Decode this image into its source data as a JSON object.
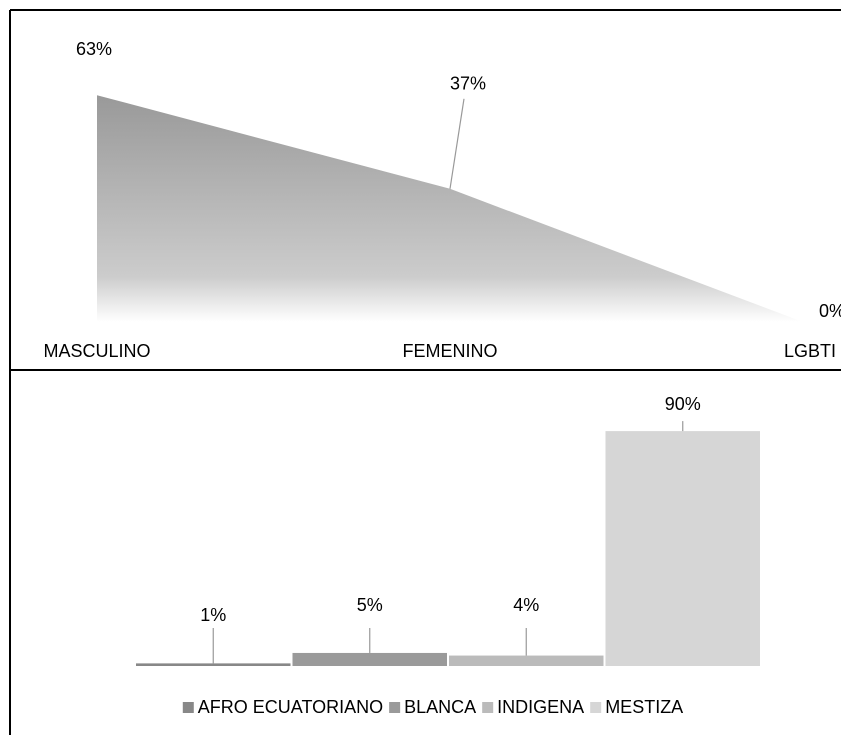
{
  "chart_data": [
    {
      "type": "area",
      "categories": [
        "MASCULINO",
        "FEMENINO",
        "LGBTI"
      ],
      "values": [
        63,
        37,
        0
      ],
      "value_labels": [
        "63%",
        "37%",
        "0%"
      ],
      "color": "#999999",
      "ylim": [
        0,
        70
      ]
    },
    {
      "type": "bar",
      "categories": [
        "AFRO ECUATORIANO",
        "BLANCA",
        "INDIGENA",
        "MESTIZA"
      ],
      "values": [
        1,
        5,
        4,
        90
      ],
      "value_labels": [
        "1%",
        "5%",
        "4%",
        "90%"
      ],
      "colors": [
        "#888888",
        "#9a9a9a",
        "#bbbbbb",
        "#d6d6d6"
      ],
      "ylim": [
        0,
        100
      ],
      "legend": "bottom"
    }
  ]
}
